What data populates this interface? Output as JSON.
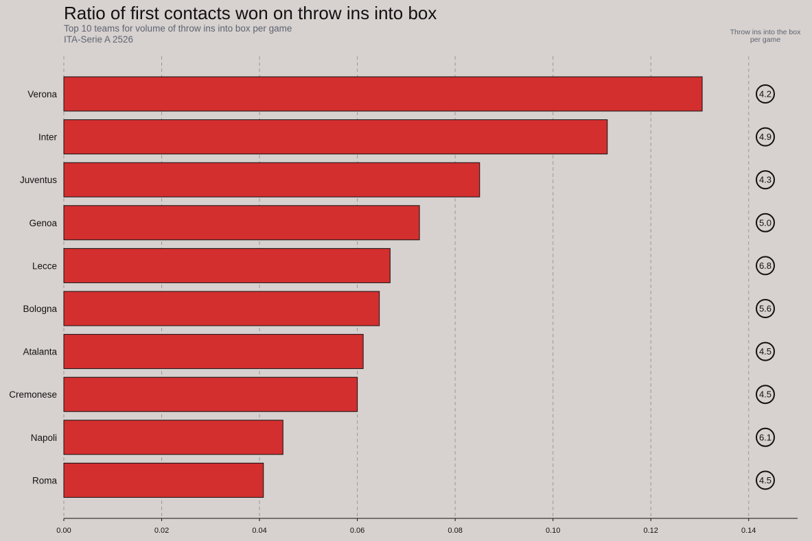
{
  "header": {
    "title": "Ratio of first contacts won on throw ins into box",
    "subtitle": "Top 10 teams for volume of throw ins into box per game",
    "competition": "ITA-Serie A 2526",
    "side_label_line1": "Throw ins into the box",
    "side_label_line2": "per game"
  },
  "colors": {
    "background": "#d7d1cf",
    "bar": "#d32f2f",
    "bar_edge": "#111111",
    "grid": "#9a9a9a"
  },
  "chart_data": {
    "type": "bar",
    "orientation": "horizontal",
    "title": "Ratio of first contacts won on throw ins into box",
    "subtitle": "Top 10 teams for volume of throw ins into box per game",
    "xlabel": "",
    "ylabel": "",
    "xlim": [
      0,
      0.15
    ],
    "xticks": [
      0.0,
      0.02,
      0.04,
      0.06,
      0.08,
      0.1,
      0.12,
      0.14
    ],
    "xtick_labels": [
      "0.00",
      "0.02",
      "0.04",
      "0.06",
      "0.08",
      "0.10",
      "0.12",
      "0.14"
    ],
    "grid": "vertical dashed",
    "categories": [
      "Verona",
      "Inter",
      "Juventus",
      "Genoa",
      "Lecce",
      "Bologna",
      "Atalanta",
      "Cremonese",
      "Napoli",
      "Roma"
    ],
    "values": [
      0.1305,
      0.1111,
      0.085,
      0.0727,
      0.0667,
      0.0645,
      0.0612,
      0.06,
      0.0448,
      0.0408
    ],
    "throw_ins_per_game": [
      "4.2",
      "4.9",
      "4.3",
      "5.0",
      "6.8",
      "5.6",
      "4.5",
      "4.5",
      "6.1",
      "4.5"
    ]
  }
}
